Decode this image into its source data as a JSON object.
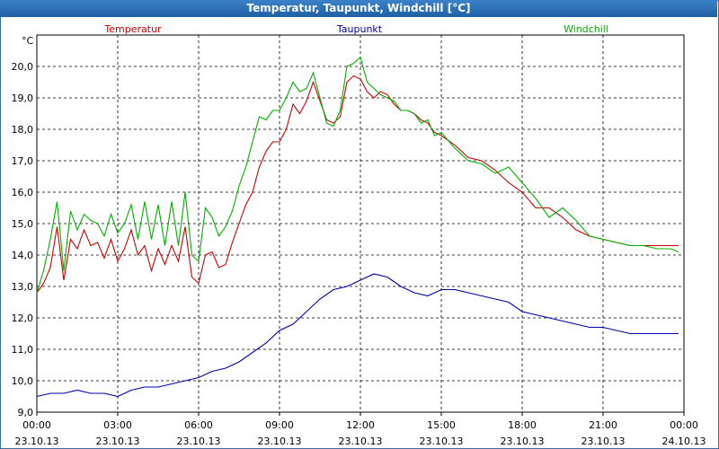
{
  "window": {
    "title": "Temperatur, Taupunkt, Windchill [°C]"
  },
  "chart_data": {
    "type": "line",
    "ylabel": "°C",
    "ylim": [
      9.0,
      21.0
    ],
    "yticks": [
      "9,0",
      "10,0",
      "11,0",
      "12,0",
      "13,0",
      "14,0",
      "15,0",
      "16,0",
      "17,0",
      "18,0",
      "19,0",
      "20,0"
    ],
    "xrange_hours": [
      0,
      24
    ],
    "xticks": [
      {
        "time": "00:00",
        "date": "23.10.13"
      },
      {
        "time": "03:00",
        "date": "23.10.13"
      },
      {
        "time": "06:00",
        "date": "23.10.13"
      },
      {
        "time": "09:00",
        "date": "23.10.13"
      },
      {
        "time": "12:00",
        "date": "23.10.13"
      },
      {
        "time": "15:00",
        "date": "23.10.13"
      },
      {
        "time": "18:00",
        "date": "23.10.13"
      },
      {
        "time": "21:00",
        "date": "23.10.13"
      },
      {
        "time": "00:00",
        "date": "24.10.13"
      }
    ],
    "grid": true,
    "series": [
      {
        "name": "Temperatur",
        "color": "#cc0000",
        "x": [
          0,
          0.25,
          0.5,
          0.75,
          1,
          1.25,
          1.5,
          1.75,
          2,
          2.25,
          2.5,
          2.75,
          3,
          3.25,
          3.5,
          3.75,
          4,
          4.25,
          4.5,
          4.75,
          5,
          5.25,
          5.5,
          5.75,
          6,
          6.25,
          6.5,
          6.75,
          7,
          7.25,
          7.5,
          7.75,
          8,
          8.25,
          8.5,
          8.75,
          9,
          9.25,
          9.5,
          9.75,
          10,
          10.25,
          10.5,
          10.75,
          11,
          11.25,
          11.5,
          11.75,
          12,
          12.25,
          12.5,
          12.75,
          13,
          13.25,
          13.5,
          13.75,
          14,
          14.25,
          14.5,
          14.75,
          15,
          15.5,
          16,
          16.5,
          17,
          17.5,
          18,
          18.5,
          19,
          19.5,
          20,
          20.5,
          21,
          21.5,
          22,
          22.5,
          23,
          23.5,
          23.8
        ],
        "values": [
          12.8,
          13.1,
          13.6,
          14.9,
          13.2,
          14.5,
          14.2,
          14.8,
          14.3,
          14.4,
          13.9,
          14.5,
          13.8,
          14.2,
          14.8,
          14.0,
          14.3,
          13.5,
          14.2,
          13.7,
          14.3,
          13.8,
          14.9,
          13.3,
          13.1,
          14.0,
          14.1,
          13.6,
          13.7,
          14.4,
          15.0,
          15.6,
          16.0,
          16.8,
          17.3,
          17.6,
          17.6,
          18.0,
          18.8,
          18.5,
          18.9,
          19.5,
          18.9,
          18.3,
          18.2,
          18.4,
          19.5,
          19.7,
          19.6,
          19.2,
          19.0,
          19.2,
          19.1,
          18.8,
          18.6,
          18.6,
          18.5,
          18.3,
          18.2,
          17.9,
          17.8,
          17.5,
          17.1,
          17.0,
          16.7,
          16.3,
          16.0,
          15.5,
          15.5,
          15.2,
          14.8,
          14.6,
          14.5,
          14.4,
          14.3,
          14.3,
          14.3,
          14.3,
          14.3
        ]
      },
      {
        "name": "Taupunkt",
        "color": "#0000b0",
        "x": [
          0,
          0.5,
          1,
          1.5,
          2,
          2.5,
          3,
          3.5,
          4,
          4.5,
          5,
          5.5,
          6,
          6.5,
          7,
          7.5,
          8,
          8.5,
          9,
          9.5,
          10,
          10.5,
          11,
          11.5,
          12,
          12.5,
          13,
          13.5,
          14,
          14.5,
          15,
          15.5,
          16,
          16.5,
          17,
          17.5,
          18,
          18.5,
          19,
          19.5,
          20,
          20.5,
          21,
          21.5,
          22,
          22.5,
          23,
          23.5,
          23.8
        ],
        "values": [
          9.5,
          9.6,
          9.6,
          9.7,
          9.6,
          9.6,
          9.5,
          9.7,
          9.8,
          9.8,
          9.9,
          10.0,
          10.1,
          10.3,
          10.4,
          10.6,
          10.9,
          11.2,
          11.6,
          11.8,
          12.2,
          12.6,
          12.9,
          13.0,
          13.2,
          13.4,
          13.3,
          13.0,
          12.8,
          12.7,
          12.9,
          12.9,
          12.8,
          12.7,
          12.6,
          12.5,
          12.2,
          12.1,
          12.0,
          11.9,
          11.8,
          11.7,
          11.7,
          11.6,
          11.5,
          11.5,
          11.5,
          11.5,
          11.5
        ]
      },
      {
        "name": "Windchill",
        "color": "#00b000",
        "x": [
          0,
          0.25,
          0.5,
          0.75,
          1,
          1.25,
          1.5,
          1.75,
          2,
          2.25,
          2.5,
          2.75,
          3,
          3.25,
          3.5,
          3.75,
          4,
          4.25,
          4.5,
          4.75,
          5,
          5.25,
          5.5,
          5.75,
          6,
          6.25,
          6.5,
          6.75,
          7,
          7.25,
          7.5,
          7.75,
          8,
          8.25,
          8.5,
          8.75,
          9,
          9.25,
          9.5,
          9.75,
          10,
          10.25,
          10.5,
          10.75,
          11,
          11.25,
          11.5,
          11.75,
          12,
          12.25,
          12.5,
          12.75,
          13,
          13.25,
          13.5,
          13.75,
          14,
          14.25,
          14.5,
          14.75,
          15,
          15.5,
          16,
          16.5,
          17,
          17.5,
          18,
          18.5,
          19,
          19.5,
          20,
          20.5,
          21,
          21.5,
          22,
          22.5,
          23,
          23.5,
          23.8
        ],
        "values": [
          12.8,
          13.5,
          14.5,
          15.7,
          13.5,
          15.4,
          14.8,
          15.3,
          15.1,
          15.0,
          14.6,
          15.3,
          14.7,
          15.0,
          15.6,
          14.5,
          15.7,
          14.5,
          15.6,
          14.3,
          15.7,
          14.3,
          16.0,
          14.0,
          13.8,
          15.5,
          15.2,
          14.6,
          14.9,
          15.4,
          16.2,
          16.8,
          17.6,
          18.4,
          18.3,
          18.6,
          18.6,
          19.0,
          19.5,
          19.2,
          19.3,
          19.8,
          19.0,
          18.2,
          18.1,
          18.6,
          20.0,
          20.1,
          20.3,
          19.5,
          19.3,
          19.1,
          19.0,
          18.9,
          18.6,
          18.6,
          18.5,
          18.2,
          18.3,
          17.8,
          17.9,
          17.4,
          17.0,
          16.9,
          16.6,
          16.8,
          16.3,
          15.8,
          15.2,
          15.5,
          15.1,
          14.6,
          14.5,
          14.4,
          14.3,
          14.3,
          14.2,
          14.2,
          14.1
        ]
      }
    ]
  }
}
